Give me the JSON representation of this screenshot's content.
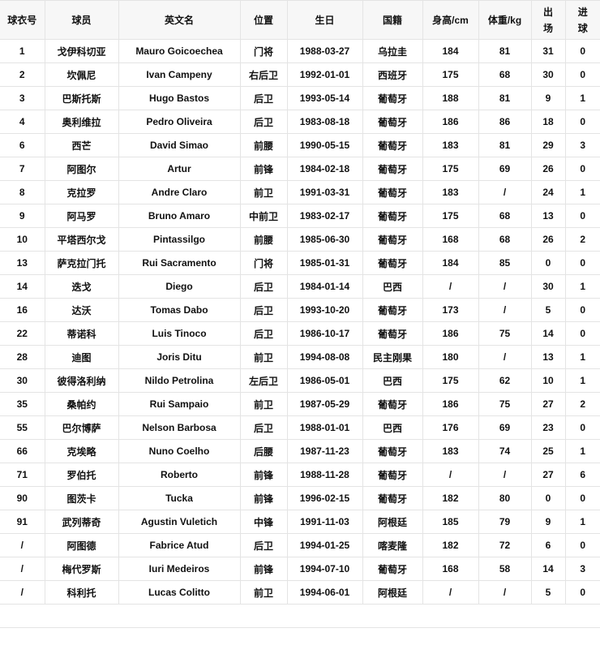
{
  "headers": [
    "球衣号",
    "球员",
    "英文名",
    "位置",
    "生日",
    "国籍",
    "身高/cm",
    "体重/kg",
    "出场",
    "进球"
  ],
  "rows": [
    [
      "1",
      "戈伊科切亚",
      "Mauro Goicoechea",
      "门将",
      "1988-03-27",
      "乌拉圭",
      "184",
      "81",
      "31",
      "0"
    ],
    [
      "2",
      "坎佩尼",
      "Ivan Campeny",
      "右后卫",
      "1992-01-01",
      "西班牙",
      "175",
      "68",
      "30",
      "0"
    ],
    [
      "3",
      "巴斯托斯",
      "Hugo Bastos",
      "后卫",
      "1993-05-14",
      "葡萄牙",
      "188",
      "81",
      "9",
      "1"
    ],
    [
      "4",
      "奥利维拉",
      "Pedro Oliveira",
      "后卫",
      "1983-08-18",
      "葡萄牙",
      "186",
      "86",
      "18",
      "0"
    ],
    [
      "6",
      "西芒",
      "David Simao",
      "前腰",
      "1990-05-15",
      "葡萄牙",
      "183",
      "81",
      "29",
      "3"
    ],
    [
      "7",
      "阿图尔",
      "Artur",
      "前锋",
      "1984-02-18",
      "葡萄牙",
      "175",
      "69",
      "26",
      "0"
    ],
    [
      "8",
      "克拉罗",
      "Andre Claro",
      "前卫",
      "1991-03-31",
      "葡萄牙",
      "183",
      "/",
      "24",
      "1"
    ],
    [
      "9",
      "阿马罗",
      "Bruno Amaro",
      "中前卫",
      "1983-02-17",
      "葡萄牙",
      "175",
      "68",
      "13",
      "0"
    ],
    [
      "10",
      "平塔西尔戈",
      "Pintassilgo",
      "前腰",
      "1985-06-30",
      "葡萄牙",
      "168",
      "68",
      "26",
      "2"
    ],
    [
      "13",
      "萨克拉门托",
      "Rui Sacramento",
      "门将",
      "1985-01-31",
      "葡萄牙",
      "184",
      "85",
      "0",
      "0"
    ],
    [
      "14",
      "迭戈",
      "Diego",
      "后卫",
      "1984-01-14",
      "巴西",
      "/",
      "/",
      "30",
      "1"
    ],
    [
      "16",
      "达沃",
      "Tomas Dabo",
      "后卫",
      "1993-10-20",
      "葡萄牙",
      "173",
      "/",
      "5",
      "0"
    ],
    [
      "22",
      "蒂诺科",
      "Luis Tinoco",
      "后卫",
      "1986-10-17",
      "葡萄牙",
      "186",
      "75",
      "14",
      "0"
    ],
    [
      "28",
      "迪图",
      "Joris Ditu",
      "前卫",
      "1994-08-08",
      "民主刚果",
      "180",
      "/",
      "13",
      "1"
    ],
    [
      "30",
      "彼得洛利纳",
      "Nildo Petrolina",
      "左后卫",
      "1986-05-01",
      "巴西",
      "175",
      "62",
      "10",
      "1"
    ],
    [
      "35",
      "桑帕约",
      "Rui Sampaio",
      "前卫",
      "1987-05-29",
      "葡萄牙",
      "186",
      "75",
      "27",
      "2"
    ],
    [
      "55",
      "巴尔博萨",
      "Nelson Barbosa",
      "后卫",
      "1988-01-01",
      "巴西",
      "176",
      "69",
      "23",
      "0"
    ],
    [
      "66",
      "克埃略",
      "Nuno Coelho",
      "后腰",
      "1987-11-23",
      "葡萄牙",
      "183",
      "74",
      "25",
      "1"
    ],
    [
      "71",
      "罗伯托",
      "Roberto",
      "前锋",
      "1988-11-28",
      "葡萄牙",
      "/",
      "/",
      "27",
      "6"
    ],
    [
      "90",
      "图茨卡",
      "Tucka",
      "前锋",
      "1996-02-15",
      "葡萄牙",
      "182",
      "80",
      "0",
      "0"
    ],
    [
      "91",
      "武列蒂奇",
      "Agustin Vuletich",
      "中锋",
      "1991-11-03",
      "阿根廷",
      "185",
      "79",
      "9",
      "1"
    ],
    [
      "/",
      "阿图德",
      "Fabrice Atud",
      "后卫",
      "1994-01-25",
      "喀麦隆",
      "182",
      "72",
      "6",
      "0"
    ],
    [
      "/",
      "梅代罗斯",
      "Iuri Medeiros",
      "前锋",
      "1994-07-10",
      "葡萄牙",
      "168",
      "58",
      "14",
      "3"
    ],
    [
      "/",
      "科利托",
      "Lucas Colitto",
      "前卫",
      "1994-06-01",
      "阿根廷",
      "/",
      "/",
      "5",
      "0"
    ]
  ]
}
